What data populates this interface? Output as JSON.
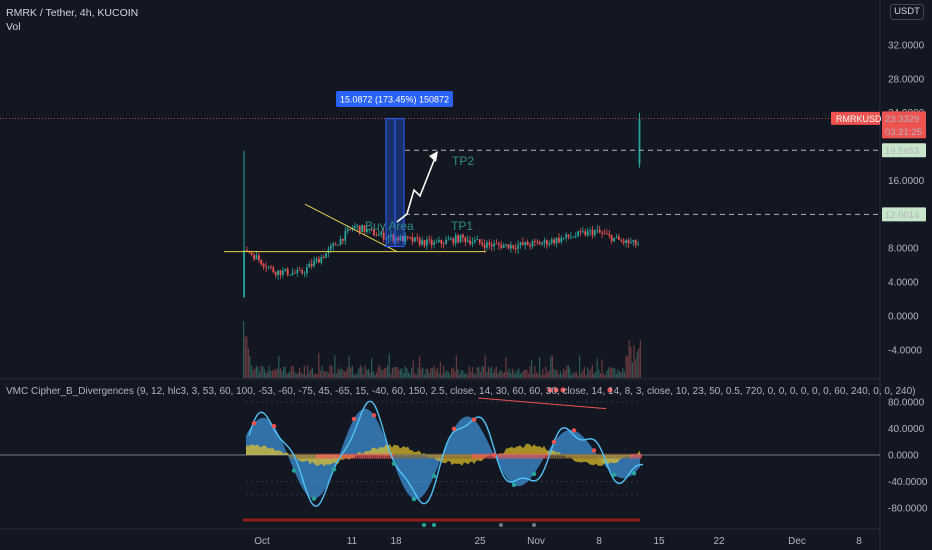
{
  "header": {
    "title": "RMRK / Tether, 4h, KUCOIN",
    "vol_label": "Vol",
    "currency": "USDT",
    "indicator": "VMC Cipher_B_Divergences (9, 12, hlc3, 3, 53, 60, 100, -53, -60, -75, 45, -65, 15, -40, 60, 150, 2.5, close, 14, 30, 60, 60, 30, close, 14, 14, 8, 3, close, 10, 23, 50, 0.5, 720, 0, 0, 0, 0, 0, 0, 60, 240, 0, 0, 240)"
  },
  "colors": {
    "background": "#131722",
    "up": "#26a69a",
    "down": "#ef5350",
    "accent": "#2962ff",
    "wave": "#3d8fd6",
    "wave_light": "#4fc3f7",
    "money_flow": "#e6c629"
  },
  "badges": {
    "symbol": "RMRKUSDT",
    "price": "23.3329",
    "countdown": "03:21:25",
    "tp2_price": "19.5653",
    "tp1_price": "12.0014"
  },
  "annotations": {
    "measure": "15.0872 (173.45%) 150872",
    "buy_area": "Buy Area",
    "tp1": "TP1",
    "tp2": "TP2"
  },
  "chart_data": [
    {
      "type": "candlestick",
      "title": "RMRK / Tether, 4h, KUCOIN",
      "y_ticks": [
        "32.0000",
        "28.0000",
        "24.0000",
        "16.0000",
        "8.0000",
        "4.0000",
        "0.0000",
        "-4.0000"
      ],
      "x_ticks": [
        "Oct",
        "11",
        "18",
        "25",
        "Nov",
        "8",
        "15",
        "22",
        "Dec",
        "8"
      ],
      "last_price": 23.3329,
      "levels": [
        {
          "name": "TP2",
          "value": 19.5653
        },
        {
          "name": "TP1",
          "value": 12.0014
        }
      ],
      "path_approx": [
        [
          "Sep 30",
          7.8
        ],
        [
          "Oct 2",
          5.3
        ],
        [
          "Oct 4",
          5.0
        ],
        [
          "Oct 6",
          7.5
        ],
        [
          "Oct 8",
          10.6
        ],
        [
          "Oct 10",
          9.5
        ],
        [
          "Oct 12",
          9.0
        ],
        [
          "Oct 14",
          8.5
        ],
        [
          "Oct 16",
          9.2
        ],
        [
          "Oct 18",
          8.4
        ],
        [
          "Oct 20",
          8.3
        ],
        [
          "Oct 22",
          8.6
        ],
        [
          "Oct 24",
          9.3
        ],
        [
          "Oct 26",
          10.0
        ],
        [
          "Oct 28",
          8.8
        ],
        [
          "Oct 30",
          8.2
        ],
        [
          "Nov 1",
          9.0
        ],
        [
          "Nov 3",
          11.0
        ],
        [
          "Nov 5",
          11.8
        ],
        [
          "Nov 7",
          12.0
        ],
        [
          "Nov 9",
          14.5
        ],
        [
          "Nov 10",
          12.5
        ],
        [
          "Nov 11",
          18.5
        ],
        [
          "Nov 12",
          23.33
        ]
      ]
    },
    {
      "type": "line",
      "title": "VMC Cipher_B_Divergences",
      "y_ticks": [
        "80.0000",
        "40.0000",
        "0.0000",
        "-40.0000",
        "-80.0000"
      ],
      "ylim": [
        -90,
        100
      ]
    }
  ]
}
